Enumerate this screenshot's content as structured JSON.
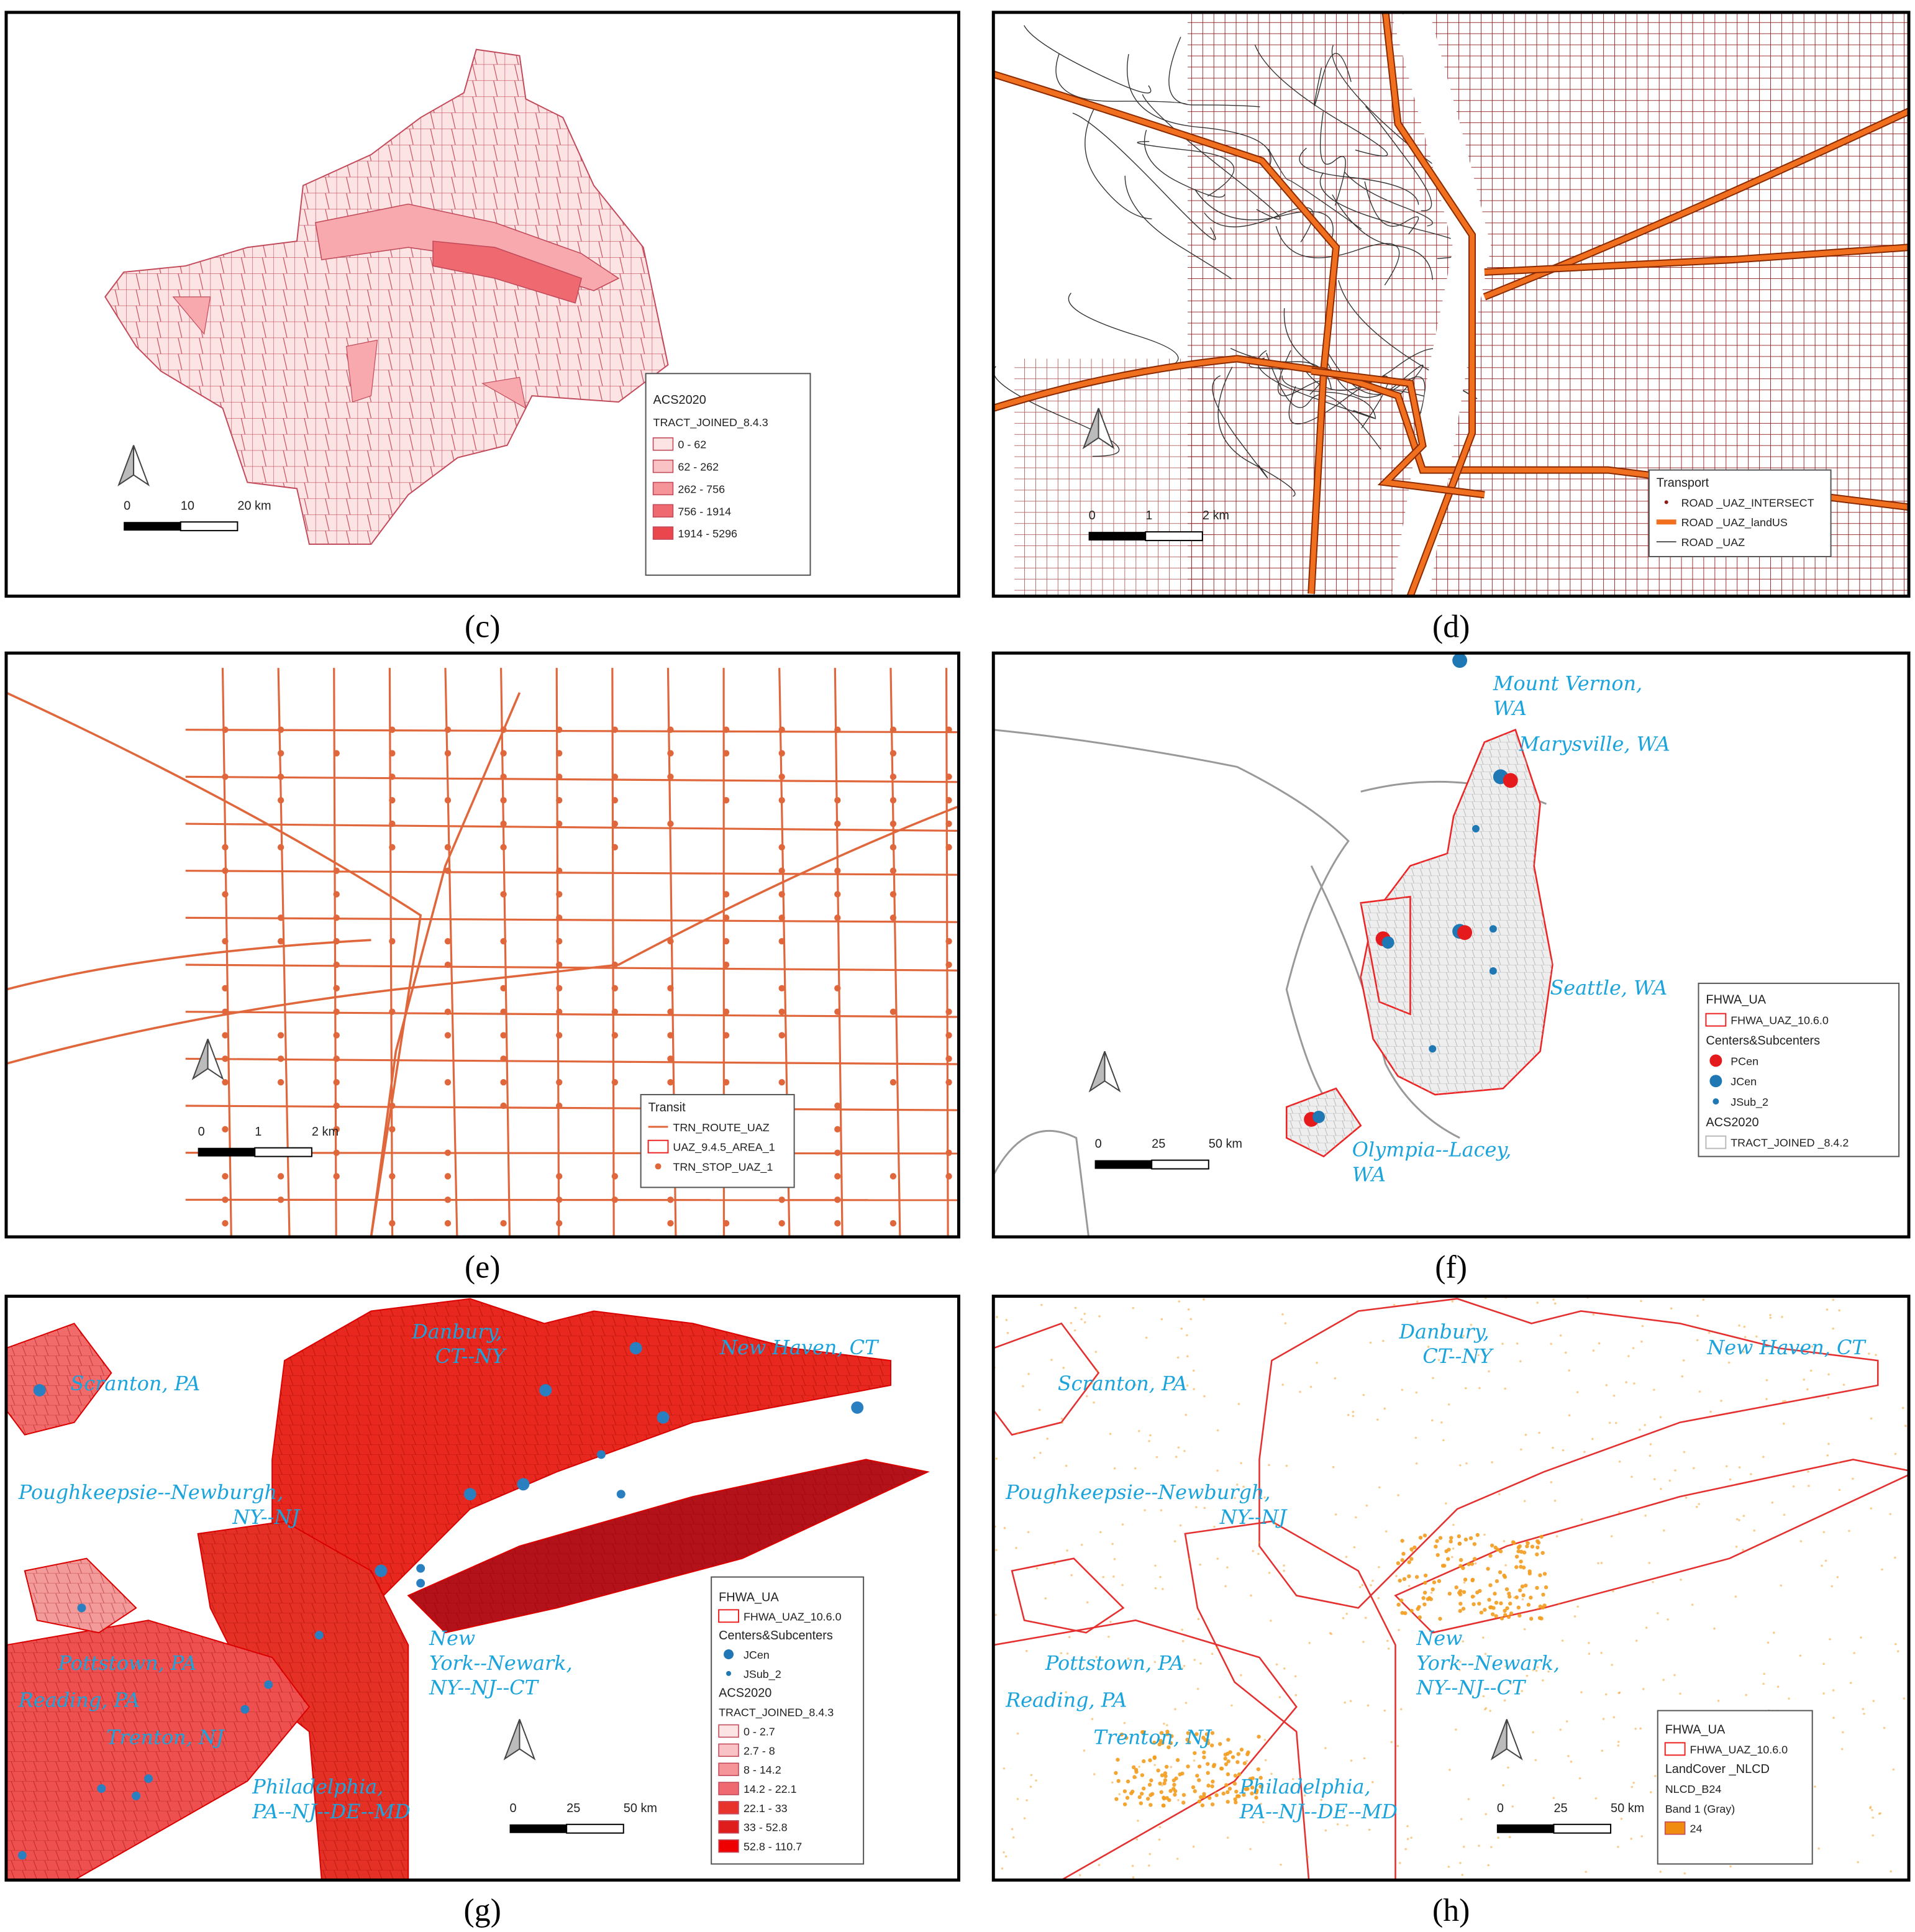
{
  "panels": [
    {
      "caption": "(c)",
      "legend": [
        "ACS2020",
        "TRACT_JOINED_8.4.3",
        "0 - 62",
        "62 - 262",
        "262 - 756",
        "756 - 1914",
        "1914 - 5296"
      ],
      "scale": [
        "0",
        "10",
        "20 km"
      ],
      "places": []
    },
    {
      "caption": "(d)",
      "legend": [
        "Transport",
        "ROAD _UAZ_INTERSECT",
        "ROAD _UAZ_landUS",
        "ROAD _UAZ"
      ],
      "scale": [
        "0",
        "1",
        "2 km"
      ],
      "places": []
    },
    {
      "caption": "(e)",
      "legend": [
        "Transit",
        "TRN_ROUTE_UAZ",
        "UAZ_9.4.5_AREA_1",
        "TRN_STOP_UAZ_1"
      ],
      "scale": [
        "0",
        "1",
        "2 km"
      ],
      "places": []
    },
    {
      "caption": "(f)",
      "legend": [
        "FHWA_UA",
        "FHWA_UAZ_10.6.0",
        "Centers&Subcenters",
        "PCen",
        "JCen",
        "JSub_2",
        "ACS2020",
        "TRACT_JOINED _8.4.2"
      ],
      "scale": [
        "0",
        "25",
        "50 km"
      ],
      "places": [
        [
          "Mount Vernon,",
          "WA"
        ],
        [
          "Marysville, WA"
        ],
        [
          "Seattle, WA"
        ],
        [
          "Olympia--Lacey,",
          "WA"
        ]
      ]
    },
    {
      "caption": "(g)",
      "legend": [
        "FHWA_UA",
        "FHWA_UAZ_10.6.0",
        "Centers&Subcenters",
        "JCen",
        "JSub_2",
        "ACS2020",
        "TRACT_JOINED_8.4.3",
        "0 - 2.7",
        "2.7 - 8",
        "8 - 14.2",
        "14.2 - 22.1",
        "22.1 - 33",
        "33 - 52.8",
        "52.8 - 110.7"
      ],
      "scale": [
        "0",
        "25",
        "50 km"
      ],
      "places": [
        [
          "Scranton, PA"
        ],
        [
          "Danbury,",
          "CT--NY"
        ],
        [
          "New Haven, CT"
        ],
        [
          "Poughkeepsie--Newburgh,",
          "NY--NJ"
        ],
        [
          "Pottstown, PA"
        ],
        [
          "Reading, PA"
        ],
        [
          "Trenton, NJ"
        ],
        [
          "New",
          "York--Newark,",
          "NY--NJ--CT"
        ],
        [
          "Philadelphia,",
          "PA--NJ--DE--MD"
        ]
      ]
    },
    {
      "caption": "(h)",
      "legend": [
        "FHWA_UA",
        "FHWA_UAZ_10.6.0",
        "LandCover _NLCD",
        "NLCD_B24",
        "Band 1 (Gray)",
        "24"
      ],
      "scale": [
        "0",
        "25",
        "50 km"
      ],
      "places": [
        [
          "Scranton, PA"
        ],
        [
          "Danbury,",
          "CT--NY"
        ],
        [
          "New Haven, CT"
        ],
        [
          "Poughkeepsie--Newburgh,",
          "NY--NJ"
        ],
        [
          "Pottstown, PA"
        ],
        [
          "Reading, PA"
        ],
        [
          "Trenton, NJ"
        ],
        [
          "New",
          "York--Newark,",
          "NY--NJ--CT"
        ],
        [
          "Philadelphia,",
          "PA--NJ--DE--MD"
        ]
      ]
    }
  ]
}
